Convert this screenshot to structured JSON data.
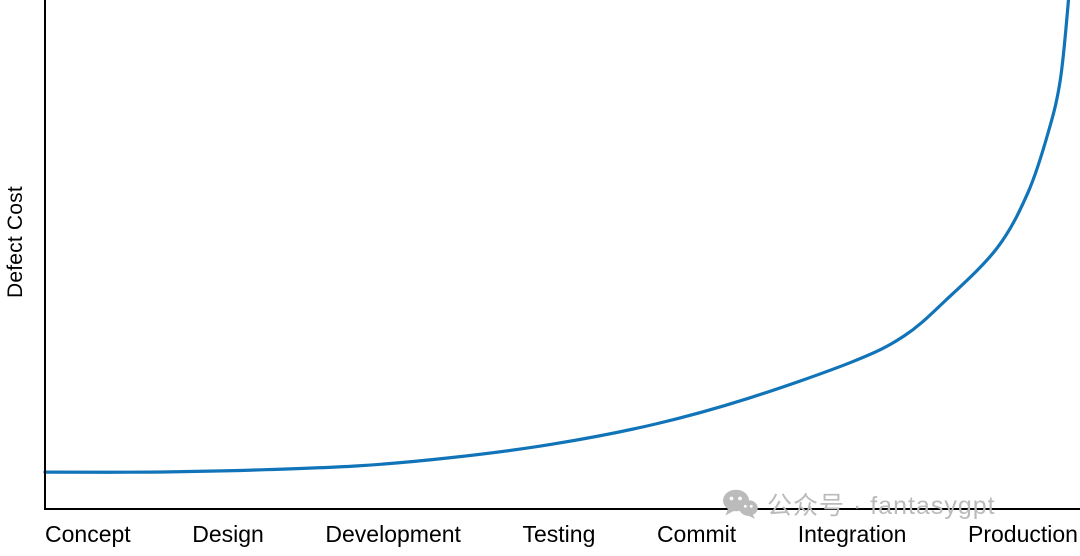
{
  "chart_data": {
    "type": "line",
    "title": "",
    "xlabel": "",
    "ylabel": "Defect Cost",
    "categories": [
      "Concept",
      "Design",
      "Development",
      "Testing",
      "Commit",
      "Integration",
      "Production"
    ],
    "series": [
      {
        "name": "Defect Cost",
        "color": "#1274b8",
        "values": [
          7,
          7.5,
          9,
          13,
          19,
          30,
          53
        ]
      }
    ],
    "ylim": [
      0,
      100
    ],
    "y_ticks": [],
    "x_tick_style": "category labels below axis, no tick marks",
    "grid": false,
    "legend": false,
    "curve_shape": "nearly flat at left, exponential rise, approaching vertical asymptote at right edge of plot",
    "curve_points": [
      {
        "t": 0.0,
        "v": 7.1
      },
      {
        "t": 0.1,
        "v": 7.1
      },
      {
        "t": 0.2,
        "v": 7.5
      },
      {
        "t": 0.3,
        "v": 8.3
      },
      {
        "t": 0.39,
        "v": 9.9
      },
      {
        "t": 0.49,
        "v": 12.6
      },
      {
        "t": 0.59,
        "v": 16.6
      },
      {
        "t": 0.68,
        "v": 21.7
      },
      {
        "t": 0.78,
        "v": 28.9
      },
      {
        "t": 0.83,
        "v": 34.0
      },
      {
        "t": 0.87,
        "v": 41.0
      },
      {
        "t": 0.92,
        "v": 51.4
      },
      {
        "t": 0.95,
        "v": 62.5
      },
      {
        "t": 0.97,
        "v": 74.7
      },
      {
        "t": 0.981,
        "v": 84.6
      },
      {
        "t": 0.988,
        "v": 98.4
      },
      {
        "t": 0.993,
        "v": 112.0
      }
    ]
  },
  "axis_color": "#000000",
  "watermark": {
    "text": "公众号 · fantasygpt",
    "icon": "wechat-icon",
    "color": "#bbbbbb"
  }
}
